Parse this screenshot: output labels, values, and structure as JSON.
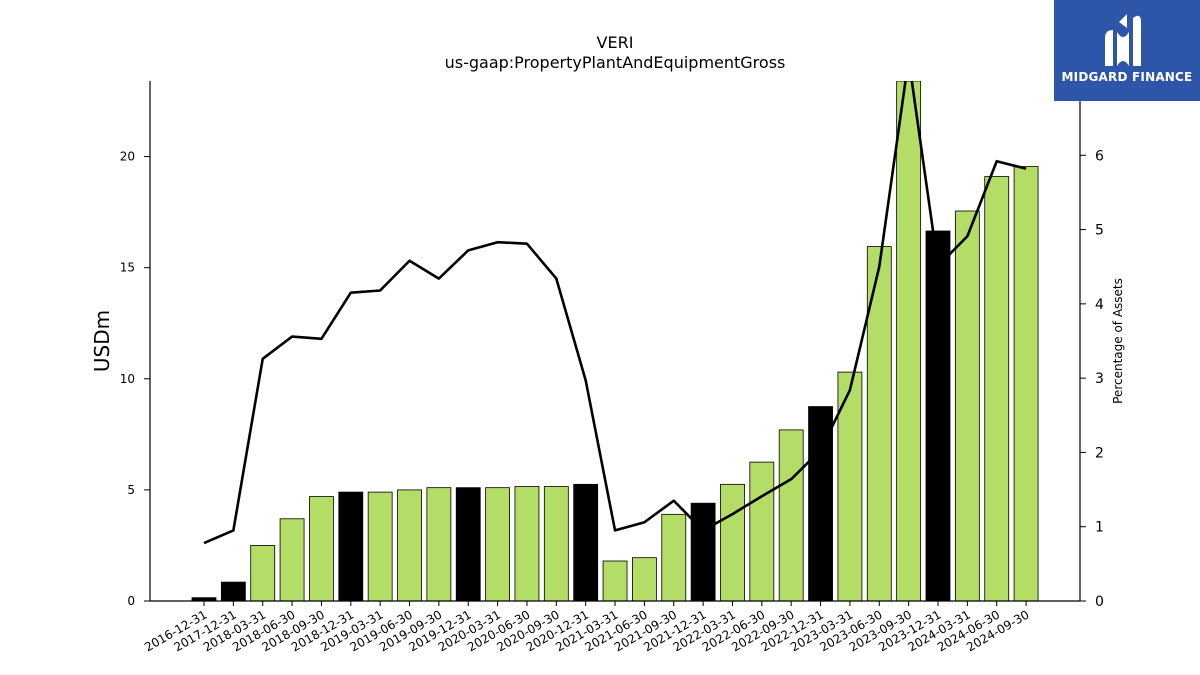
{
  "chart_data": {
    "type": "bar",
    "title": "VERI",
    "subtitle": "us-gaap:PropertyPlantAndEquipmentGross",
    "ylabel": "USDm",
    "ylabel_right": "Percentage of Assets",
    "ylim": [
      0,
      23.4
    ],
    "ylim_right": [
      0,
      7
    ],
    "yticks": [
      "0",
      "5",
      "10",
      "15",
      "20"
    ],
    "yticks_right": [
      "0",
      "1",
      "2",
      "3",
      "4",
      "5",
      "6"
    ],
    "grid": false,
    "categories": [
      "2016-12-31",
      "2017-12-31",
      "2018-03-31",
      "2018-06-30",
      "2018-09-30",
      "2018-12-31",
      "2019-03-31",
      "2019-06-30",
      "2019-09-30",
      "2019-12-31",
      "2020-03-31",
      "2020-06-30",
      "2020-09-30",
      "2020-12-31",
      "2021-03-31",
      "2021-06-30",
      "2021-09-30",
      "2021-12-31",
      "2022-03-31",
      "2022-06-30",
      "2022-09-30",
      "2022-12-31",
      "2023-03-31",
      "2023-06-30",
      "2023-09-30",
      "2023-12-31",
      "2024-03-31",
      "2024-06-30",
      "2024-09-30"
    ],
    "series": [
      {
        "type": "bar",
        "axis": "left",
        "values": [
          0.15,
          0.85,
          2.5,
          3.7,
          4.7,
          4.9,
          4.9,
          5.0,
          5.1,
          5.1,
          5.1,
          5.15,
          5.15,
          5.25,
          1.8,
          1.95,
          3.9,
          4.4,
          5.25,
          6.25,
          7.7,
          8.75,
          10.3,
          15.95,
          23.4,
          16.65,
          17.55,
          19.1,
          19.55
        ],
        "bar_colors": [
          "#000000",
          "#000000",
          "#b3dd66",
          "#b3dd66",
          "#b3dd66",
          "#000000",
          "#b3dd66",
          "#b3dd66",
          "#b3dd66",
          "#000000",
          "#b3dd66",
          "#b3dd66",
          "#b3dd66",
          "#000000",
          "#b3dd66",
          "#b3dd66",
          "#b3dd66",
          "#000000",
          "#b3dd66",
          "#b3dd66",
          "#b3dd66",
          "#000000",
          "#b3dd66",
          "#b3dd66",
          "#b3dd66",
          "#000000",
          "#b3dd66",
          "#b3dd66",
          "#b3dd66"
        ]
      },
      {
        "type": "line",
        "axis": "right",
        "color": "#000000",
        "values": [
          0.78,
          0.95,
          3.26,
          3.56,
          3.53,
          4.15,
          4.18,
          4.58,
          4.34,
          4.72,
          4.83,
          4.81,
          4.34,
          2.97,
          0.95,
          1.06,
          1.35,
          0.95,
          1.17,
          1.41,
          1.64,
          2.03,
          2.84,
          4.5,
          7.3,
          4.51,
          4.91,
          5.92,
          5.82
        ]
      }
    ]
  },
  "logo": {
    "text": "MIDGARD FINANCE",
    "bg_color": "#2e56a8"
  }
}
